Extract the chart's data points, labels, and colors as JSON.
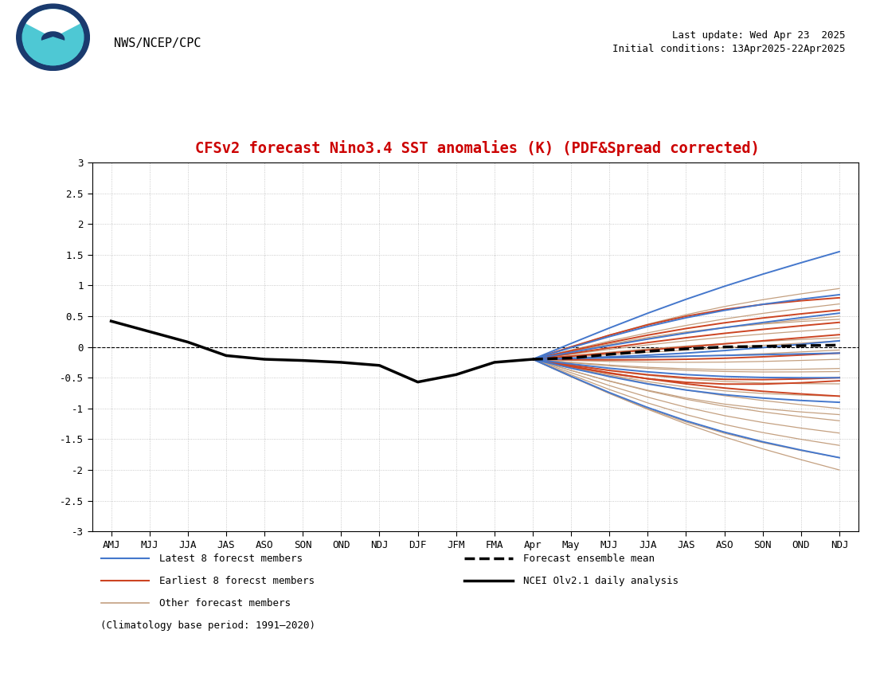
{
  "title": "CFSv2 forecast Nino3.4 SST anomalies (K) (PDF&Spread corrected)",
  "title_color": "#cc0000",
  "header_text": "NWS/NCEP/CPC",
  "update_text": "Last update: Wed Apr 23  2025",
  "initial_text": "Initial conditions: 13Apr2025-22Apr2025",
  "x_labels": [
    "AMJ",
    "MJJ",
    "JJA",
    "JAS",
    "ASO",
    "SON",
    "OND",
    "NDJ",
    "DJF",
    "JFM",
    "FMA",
    "Apr",
    "May",
    "MJJ",
    "JJA",
    "JAS",
    "ASO",
    "SON",
    "OND",
    "NDJ"
  ],
  "ylim": [
    -3,
    3
  ],
  "yticks": [
    -3,
    -2.5,
    -2,
    -1.5,
    -1,
    -0.5,
    0,
    0.5,
    1,
    1.5,
    2,
    2.5,
    3
  ],
  "analysis_color": "#000000",
  "ensemble_mean_color": "#000000",
  "latest8_color": "#4477cc",
  "earliest8_color": "#cc4422",
  "other_color": "#c4a080",
  "background_color": "#ffffff",
  "grid_color": "#bbbbbb",
  "climatology_text": "(Climatology base period: 1991–2020)",
  "legend_left": [
    {
      "label": "Latest 8 forecst members",
      "color": "#4477cc",
      "lw": 1.5,
      "ls": "-"
    },
    {
      "label": "Earliest 8 forecst members",
      "color": "#cc4422",
      "lw": 1.5,
      "ls": "-"
    },
    {
      "label": "Other forecast members",
      "color": "#c4a080",
      "lw": 1.2,
      "ls": "-"
    }
  ],
  "legend_right": [
    {
      "label": "Forecast ensemble mean",
      "color": "#000000",
      "lw": 2.5,
      "ls": "--"
    },
    {
      "label": "NCEI Olv2.1 daily analysis",
      "color": "#000000",
      "lw": 2.5,
      "ls": "-"
    }
  ]
}
